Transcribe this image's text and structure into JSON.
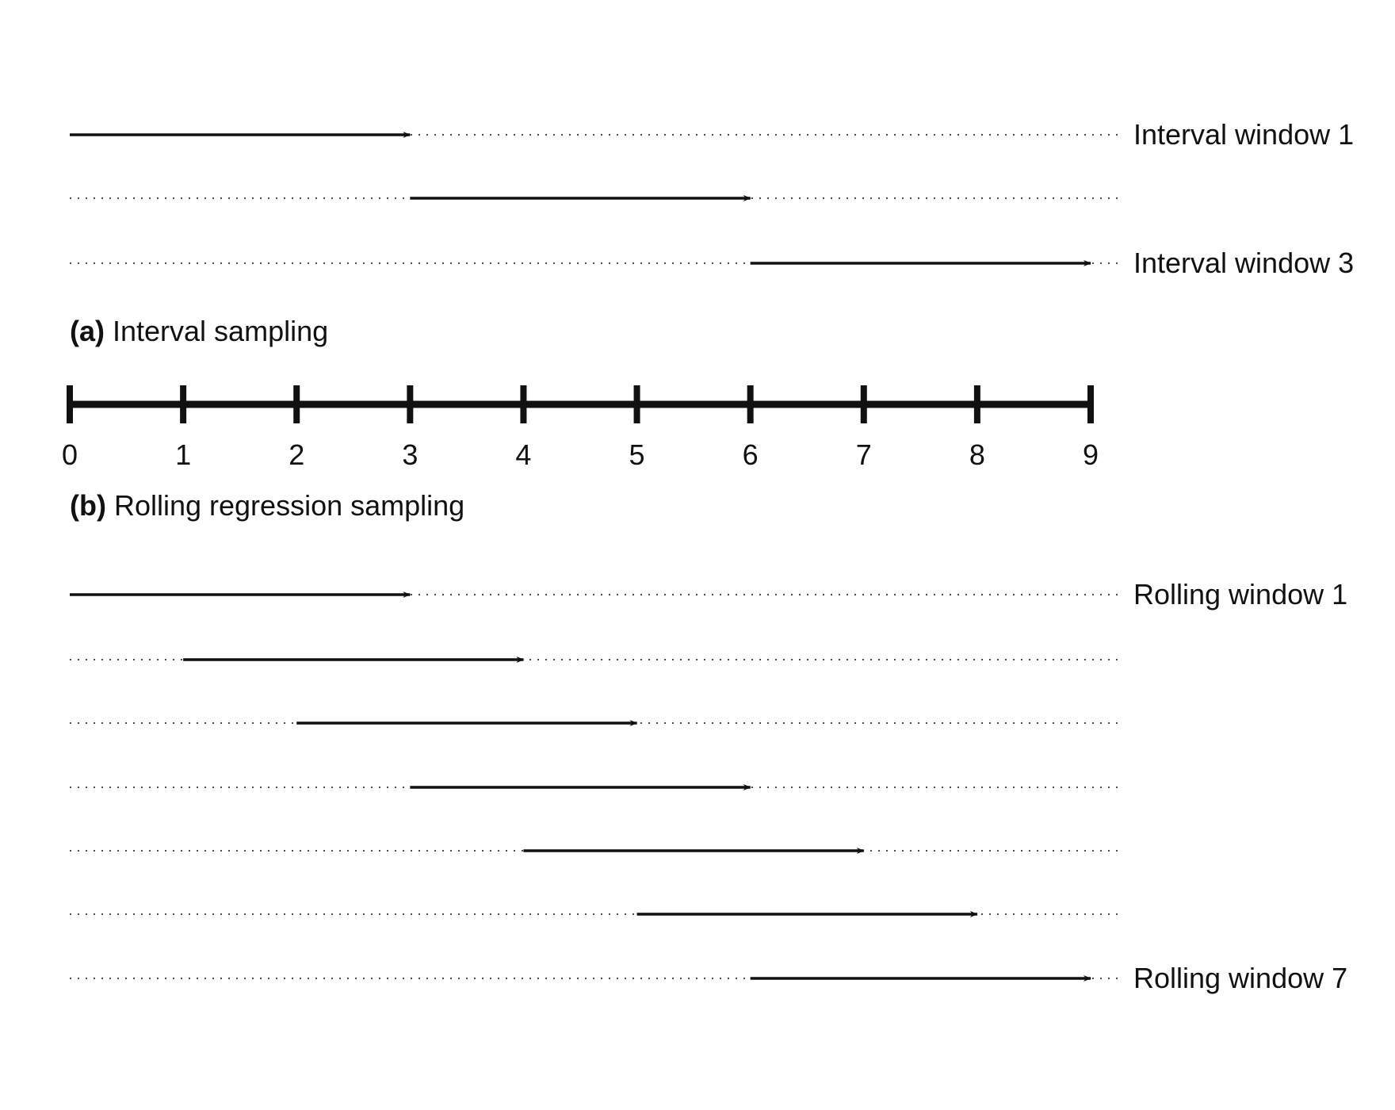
{
  "diagram": {
    "axis": {
      "min": 0,
      "max": 9,
      "ticks": [
        0,
        1,
        2,
        3,
        4,
        5,
        6,
        7,
        8,
        9
      ],
      "tick_labels": [
        "0",
        "1",
        "2",
        "3",
        "4",
        "5",
        "6",
        "7",
        "8",
        "9"
      ]
    },
    "interval": {
      "caption_tag": "(a)",
      "caption_text": " Interval sampling",
      "windows": [
        {
          "start": 0,
          "end": 3,
          "label": "Interval window 1"
        },
        {
          "start": 3,
          "end": 6,
          "label": ""
        },
        {
          "start": 6,
          "end": 9,
          "label": "Interval window 3"
        }
      ]
    },
    "rolling": {
      "caption_tag": "(b)",
      "caption_text": " Rolling regression sampling",
      "windows": [
        {
          "start": 0,
          "end": 3,
          "label": "Rolling window 1"
        },
        {
          "start": 1,
          "end": 4,
          "label": ""
        },
        {
          "start": 2,
          "end": 5,
          "label": ""
        },
        {
          "start": 3,
          "end": 6,
          "label": ""
        },
        {
          "start": 4,
          "end": 7,
          "label": ""
        },
        {
          "start": 5,
          "end": 8,
          "label": ""
        },
        {
          "start": 6,
          "end": 9,
          "label": "Rolling window 7"
        }
      ]
    }
  }
}
